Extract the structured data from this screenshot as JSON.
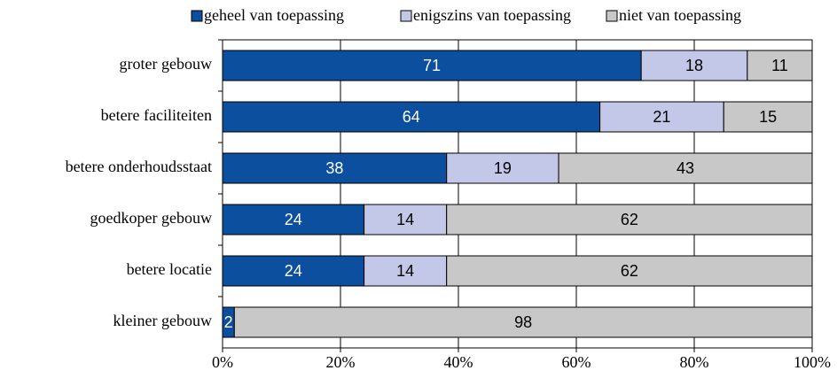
{
  "chart_data": {
    "type": "stacked_barh",
    "categories": [
      "groter gebouw",
      "betere faciliteiten",
      "betere onderhoudsstaat",
      "goedkoper gebouw",
      "betere locatie",
      "kleiner gebouw"
    ],
    "series": [
      {
        "name": "geheel van toepassing",
        "color": "#0b4f9e",
        "values": [
          71,
          64,
          38,
          24,
          24,
          2
        ]
      },
      {
        "name": "enigszins van toepassing",
        "color": "#c3c8e8",
        "values": [
          18,
          21,
          19,
          14,
          14,
          null
        ]
      },
      {
        "name": "niet van toepassing",
        "color": "#c8c8c8",
        "values": [
          11,
          15,
          43,
          62,
          62,
          98
        ]
      }
    ],
    "xlim": [
      0,
      100
    ],
    "xticks": [
      {
        "value": 0,
        "label": "0%"
      },
      {
        "value": 20,
        "label": "20%"
      },
      {
        "value": 40,
        "label": "40%"
      },
      {
        "value": 60,
        "label": "60%"
      },
      {
        "value": 80,
        "label": "80%"
      },
      {
        "value": 100,
        "label": "100%"
      }
    ],
    "grid": true,
    "legend": "top"
  }
}
